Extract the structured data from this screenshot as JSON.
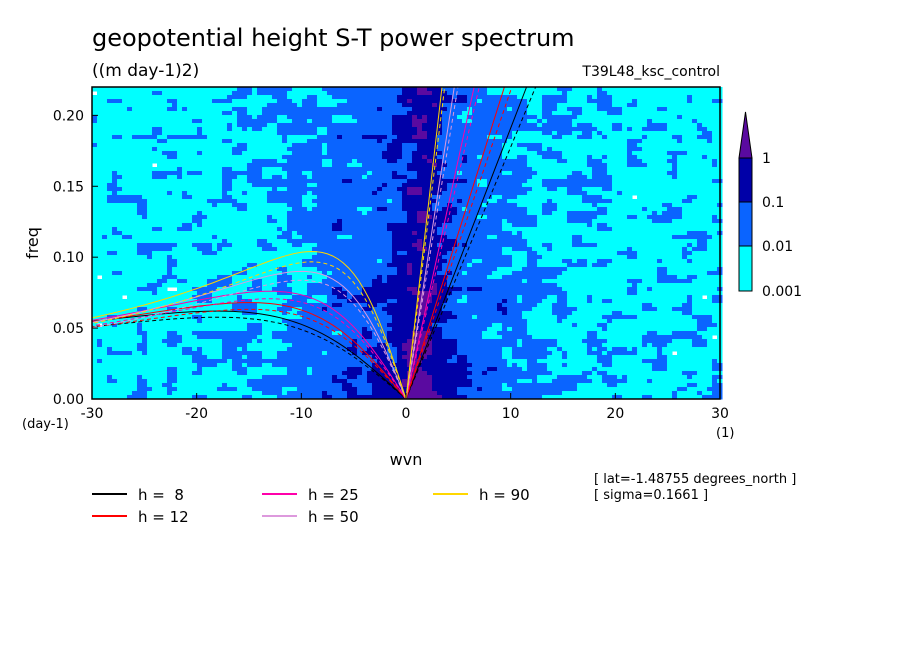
{
  "chart_data": {
    "type": "heatmap",
    "title": "geopotential height S-T power spectrum",
    "units": "((m day-1)2)",
    "run_label": "T39L48_ksc_control",
    "xlabel": "wvn",
    "ylabel": "freq",
    "x_unit": "(1)",
    "y_unit": "(day-1)",
    "xlim": [
      -30,
      30
    ],
    "ylim": [
      0,
      0.22
    ],
    "x_ticks": [
      "-30",
      "-20",
      "-10",
      "0",
      "10",
      "20",
      "30"
    ],
    "x_tick_values": [
      -30,
      -20,
      -10,
      0,
      10,
      20,
      30
    ],
    "y_ticks": [
      "0.00",
      "0.05",
      "0.10",
      "0.15",
      "0.20"
    ],
    "y_tick_values": [
      0,
      0.05,
      0.1,
      0.15,
      0.2
    ],
    "colorbar": {
      "levels": [
        "0.001",
        "0.01",
        "0.1",
        "1"
      ],
      "level_values": [
        0.001,
        0.01,
        0.1,
        1
      ],
      "colors": [
        "#00ffff",
        "#0a64ff",
        "#0000a8",
        "#5a0aa0"
      ],
      "below_color": "#ffffff"
    },
    "dispersion_curves": [
      {
        "label": "h =  8",
        "h": 8,
        "color": "#000000",
        "eastward_slope": 0.0191,
        "westward_peak_freq": 0.062,
        "westward_peak_wvn": -18
      },
      {
        "label": "h = 12",
        "h": 12,
        "color": "#ff0000",
        "eastward_slope": 0.0234,
        "westward_peak_freq": 0.068,
        "westward_peak_wvn": -15
      },
      {
        "label": "h = 25",
        "h": 25,
        "color": "#ff00aa",
        "eastward_slope": 0.0338,
        "westward_peak_freq": 0.076,
        "westward_peak_wvn": -13
      },
      {
        "label": "h = 50",
        "h": 50,
        "color": "#dd99dd",
        "eastward_slope": 0.0477,
        "westward_peak_freq": 0.09,
        "westward_peak_wvn": -10
      },
      {
        "label": "h = 90",
        "h": 90,
        "color": "#ffd700",
        "eastward_slope": 0.064,
        "westward_peak_freq": 0.104,
        "westward_peak_wvn": -9
      }
    ],
    "annotations": [
      "[ lat=-1.48755 degrees_north ]",
      "[ sigma=0.1661 ]"
    ]
  }
}
